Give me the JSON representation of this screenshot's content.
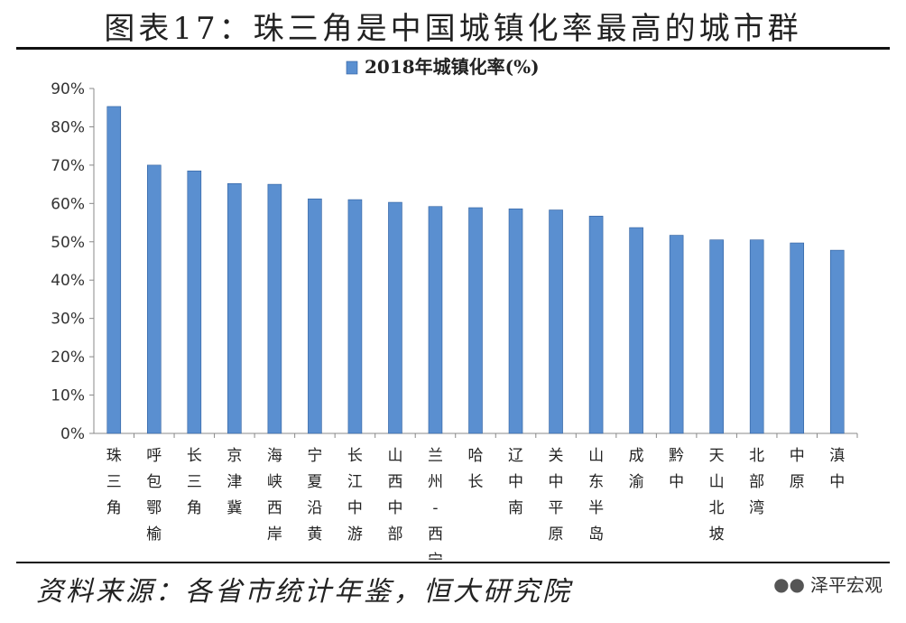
{
  "header": {
    "title": "图表17：珠三角是中国城镇化率最高的城市群"
  },
  "footer": {
    "source": "资料来源：各省市统计年鉴，恒大研究院",
    "brand": "泽平宏观",
    "brand_icon": "wechat-icon"
  },
  "colors": {
    "bar": "#5a8fd0",
    "bar_edge": "#2f5f9e",
    "axis": "#888888"
  },
  "chart_data": {
    "type": "bar",
    "legend": "top-center",
    "grid": false,
    "ylim": [
      0,
      90
    ],
    "yticks": [
      "0%",
      "10%",
      "20%",
      "30%",
      "40%",
      "50%",
      "60%",
      "70%",
      "80%",
      "90%"
    ],
    "categories": [
      "珠三角",
      "呼包鄂榆",
      "长三角",
      "京津冀",
      "海峡西岸",
      "宁夏沿黄",
      "长江中游",
      "山西中部",
      "兰州-西宁",
      "哈长",
      "辽中南",
      "关中平原",
      "山东半岛",
      "成渝",
      "黔中",
      "天山北坡",
      "北部湾",
      "中原",
      "滇中"
    ],
    "series": [
      {
        "name": "2018年城镇化率(%)",
        "values": [
          85.3,
          70.0,
          68.5,
          65.2,
          65.0,
          61.2,
          61.0,
          60.3,
          59.2,
          58.9,
          58.6,
          58.3,
          56.7,
          53.7,
          51.7,
          50.5,
          50.5,
          49.7,
          47.8
        ]
      }
    ]
  }
}
